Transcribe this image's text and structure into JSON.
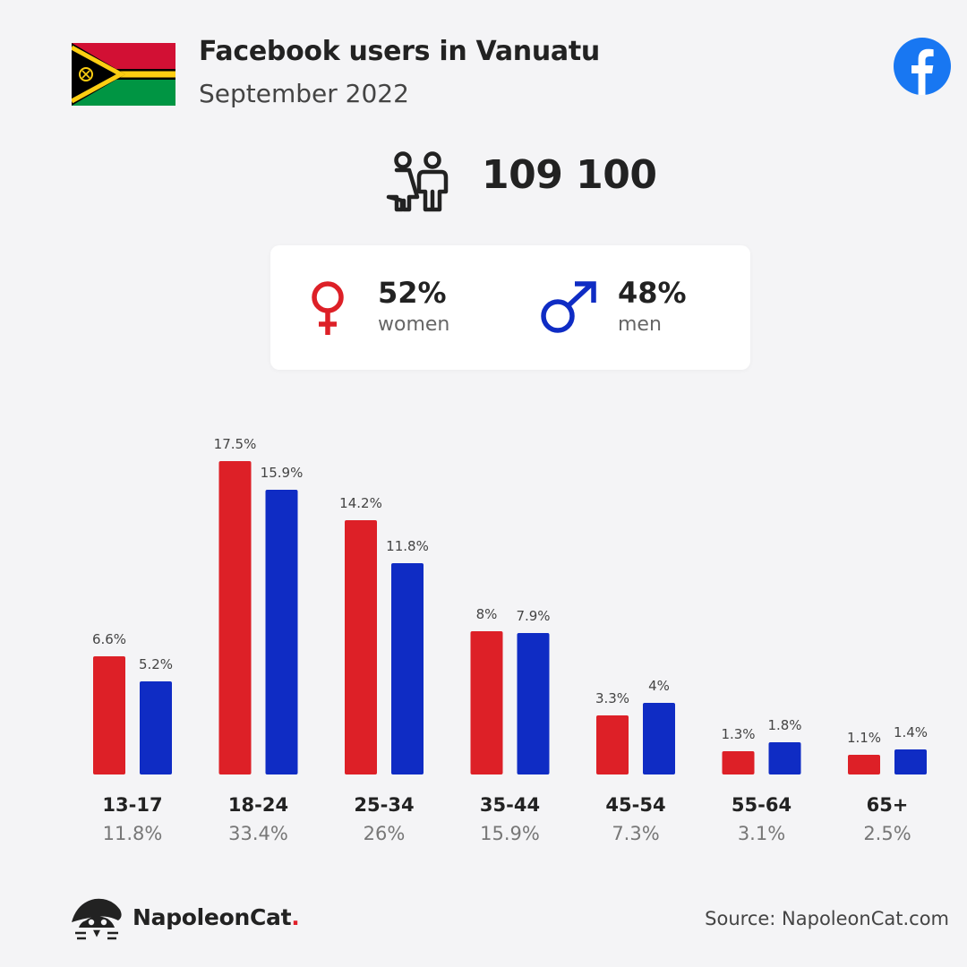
{
  "header": {
    "title": "Facebook users in Vanuatu",
    "subtitle": "September 2022"
  },
  "summary": {
    "total_users": "109 100",
    "women_pct": "52%",
    "women_label": "women",
    "men_pct": "48%",
    "men_label": "men"
  },
  "icons": {
    "flag": "vanuatu-flag",
    "brand": "facebook-logo",
    "users": "users-icon",
    "female": "female-symbol-icon",
    "male": "male-symbol-icon",
    "logo": "napoleoncat-logo"
  },
  "colors": {
    "women": "#dd2027",
    "men": "#0f2cc4",
    "facebook": "#1877f2"
  },
  "footer": {
    "logo_text": "NapoleonCat",
    "logo_dot": ".",
    "source": "Source: NapoleonCat.com"
  },
  "chart_data": {
    "type": "bar",
    "categories": [
      "13-17",
      "18-24",
      "25-34",
      "35-44",
      "45-54",
      "55-64",
      "65+"
    ],
    "category_totals": [
      "11.8%",
      "33.4%",
      "26%",
      "15.9%",
      "7.3%",
      "3.1%",
      "2.5%"
    ],
    "series": [
      {
        "key": "women",
        "values": [
          6.6,
          17.5,
          14.2,
          8,
          3.3,
          1.3,
          1.1
        ],
        "labels": [
          "6.6%",
          "17.5%",
          "14.2%",
          "8%",
          "3.3%",
          "1.3%",
          "1.1%"
        ]
      },
      {
        "key": "men",
        "values": [
          5.2,
          15.9,
          11.8,
          7.9,
          4,
          1.8,
          1.4
        ],
        "labels": [
          "5.2%",
          "15.9%",
          "11.8%",
          "7.9%",
          "4%",
          "1.8%",
          "1.4%"
        ]
      }
    ],
    "title": "",
    "xlabel": "",
    "ylabel": "",
    "ylim": [
      0,
      17.5
    ],
    "grid": false,
    "legend": "none"
  }
}
